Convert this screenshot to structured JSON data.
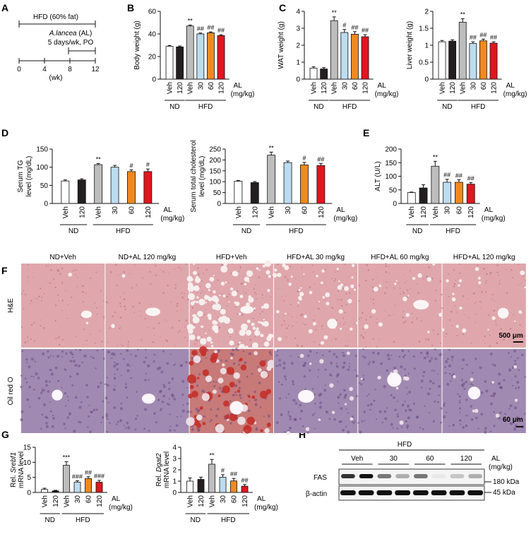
{
  "colors": {
    "Veh_ND": "#ffffff",
    "AL120_ND": "#231f20",
    "Veh_HFD": "#bdbdbd",
    "AL30": "#bcdcf0",
    "AL60": "#f08a1e",
    "AL120_HFD": "#e2161e",
    "he_stain": "#dfa7ac",
    "oro_stain": "#a18ab1",
    "lipid": "#c4302a"
  },
  "panelA": {
    "label": "A",
    "hfd_text": "HFD (60% fat)",
    "al_text": "A.lancea",
    "al_suffix": " (AL)",
    "schedule_text": "5 days/wk, PO",
    "ticks": [
      "0",
      "4",
      "8",
      "12"
    ],
    "unit": "(wk)"
  },
  "groups": {
    "bar_labels": [
      "Veh",
      "120",
      "Veh",
      "30",
      "60",
      "120"
    ],
    "al_label": "AL",
    "al_unit": "(mg/kg)",
    "nd": "ND",
    "hfd": "HFD"
  },
  "chart_data": [
    {
      "id": "B",
      "type": "bar",
      "ylabel": "Body weight (g)",
      "ylim": [
        0,
        60
      ],
      "yticks": [
        0,
        20,
        40,
        60
      ],
      "categories": [
        "ND Veh",
        "ND AL 120",
        "HFD Veh",
        "HFD AL 30",
        "HFD AL 60",
        "HFD AL 120"
      ],
      "values": [
        29,
        28.5,
        47,
        40,
        41,
        38.5
      ],
      "errors": [
        0.8,
        0.8,
        0.8,
        0.8,
        0.8,
        0.8
      ],
      "annotations": [
        "",
        "",
        "**",
        "##",
        "##",
        "##"
      ]
    },
    {
      "id": "C1",
      "type": "bar",
      "ylabel": "WAT weight (g)",
      "ylim": [
        0,
        4
      ],
      "yticks": [
        0,
        1,
        2,
        3,
        4
      ],
      "categories": [
        "ND Veh",
        "ND AL 120",
        "HFD Veh",
        "HFD AL 30",
        "HFD AL 60",
        "HFD AL 120"
      ],
      "values": [
        0.65,
        0.6,
        3.45,
        2.75,
        2.65,
        2.5
      ],
      "errors": [
        0.08,
        0.08,
        0.22,
        0.18,
        0.15,
        0.12
      ],
      "annotations": [
        "",
        "",
        "**",
        "#",
        "##",
        "##"
      ]
    },
    {
      "id": "C2",
      "type": "bar",
      "ylabel": "Liver weight (g)",
      "ylim": [
        0,
        2
      ],
      "yticks": [
        0,
        0.5,
        1,
        1.5,
        2
      ],
      "categories": [
        "ND Veh",
        "ND AL 120",
        "HFD Veh",
        "HFD AL 30",
        "HFD AL 60",
        "HFD AL 120"
      ],
      "values": [
        1.1,
        1.12,
        1.68,
        1.05,
        1.13,
        1.06
      ],
      "errors": [
        0.04,
        0.04,
        0.1,
        0.05,
        0.05,
        0.04
      ],
      "annotations": [
        "",
        "",
        "**",
        "##",
        "##",
        "##"
      ]
    },
    {
      "id": "D1",
      "type": "bar",
      "ylabel": "Serum TG level (mg/dL)",
      "ylim": [
        0,
        150
      ],
      "yticks": [
        0,
        50,
        100,
        150
      ],
      "categories": [
        "ND Veh",
        "ND AL 120",
        "HFD Veh",
        "HFD AL 30",
        "HFD AL 60",
        "HFD AL 120"
      ],
      "values": [
        62,
        65,
        107,
        100,
        88,
        88
      ],
      "errors": [
        3,
        3,
        3,
        5,
        5,
        7
      ],
      "annotations": [
        "",
        "",
        "**",
        "",
        "#",
        "#"
      ]
    },
    {
      "id": "D2",
      "type": "bar",
      "ylabel": "Serum total cholesterol level (mg/dL)",
      "ylim": [
        0,
        250
      ],
      "yticks": [
        0,
        50,
        100,
        150,
        200,
        250
      ],
      "categories": [
        "ND Veh",
        "ND AL 120",
        "HFD Veh",
        "HFD AL 30",
        "HFD AL 60",
        "HFD AL 120"
      ],
      "values": [
        102,
        96,
        222,
        188,
        177,
        174
      ],
      "errors": [
        4,
        5,
        14,
        7,
        12,
        10
      ],
      "annotations": [
        "",
        "",
        "**",
        "",
        "#",
        "##"
      ]
    },
    {
      "id": "E",
      "type": "bar",
      "ylabel": "ALT (U/L)",
      "ylim": [
        0,
        200
      ],
      "yticks": [
        0,
        50,
        100,
        150,
        200
      ],
      "categories": [
        "ND Veh",
        "ND AL 120",
        "HFD Veh",
        "HFD AL 30",
        "HFD AL 60",
        "HFD AL 120"
      ],
      "values": [
        40,
        57,
        137,
        78,
        78,
        71
      ],
      "errors": [
        2,
        12,
        18,
        11,
        9,
        6
      ],
      "annotations": [
        "",
        "",
        "**",
        "##",
        "##",
        "##"
      ]
    },
    {
      "id": "G1",
      "type": "bar",
      "ylabel_prefix": "Rel. ",
      "ylabel_gene": "Srebf1",
      "ylabel2": "mRNA level",
      "ylim": [
        0,
        15
      ],
      "yticks": [
        0,
        5,
        10,
        15
      ],
      "categories": [
        "ND Veh",
        "ND AL 120",
        "HFD Veh",
        "HFD AL 30",
        "HFD AL 60",
        "HFD AL 120"
      ],
      "values": [
        1,
        0.5,
        9,
        3.4,
        4.6,
        3.4
      ],
      "errors": [
        0.4,
        0.2,
        1.2,
        0.5,
        0.6,
        0.6
      ],
      "annotations": [
        "",
        "",
        "***",
        "###",
        "##",
        "###"
      ]
    },
    {
      "id": "G2",
      "type": "bar",
      "ylabel_prefix": "Rel. ",
      "ylabel_gene": "Dgat2",
      "ylabel2": "mRNA level",
      "ylim": [
        0,
        4
      ],
      "yticks": [
        0,
        1,
        2,
        3,
        4
      ],
      "categories": [
        "ND Veh",
        "ND AL 120",
        "HFD Veh",
        "HFD AL 30",
        "HFD AL 60",
        "HFD AL 120"
      ],
      "values": [
        1,
        1.15,
        2.5,
        1.35,
        1.02,
        0.55
      ],
      "errors": [
        0.28,
        0.2,
        0.42,
        0.22,
        0.22,
        0.15
      ],
      "annotations": [
        "",
        "",
        "**",
        "#",
        "##",
        "##"
      ]
    }
  ],
  "panelF": {
    "label": "F",
    "columns": [
      "ND+Veh",
      "ND+AL 120 mg/kg",
      "HFD+Veh",
      "HFD+AL 30 mg/kg",
      "HFD+AL 60 mg/kg",
      "HFD+AL 120 mg/kg"
    ],
    "rows": [
      "H&E",
      "Oil red O"
    ],
    "scale1": "500 μm",
    "scale2": "60 μm"
  },
  "panelH": {
    "label": "H",
    "hfd": "HFD",
    "doses": [
      "Veh",
      "30",
      "60",
      "120"
    ],
    "al_label": "AL",
    "al_unit": "(mg/kg)",
    "bands": [
      "FAS",
      "β-actin"
    ],
    "sizes": [
      "180 kDa",
      "45 kDa"
    ],
    "fas_intensity": [
      0.85,
      1.0,
      0.55,
      0.3,
      0.55,
      0.05,
      0.2,
      0.3
    ],
    "actin_intensity": [
      1,
      1,
      1,
      1,
      1,
      1,
      1,
      1
    ]
  },
  "panel_labels": {
    "B": "B",
    "C": "C",
    "D": "D",
    "E": "E",
    "G": "G"
  }
}
